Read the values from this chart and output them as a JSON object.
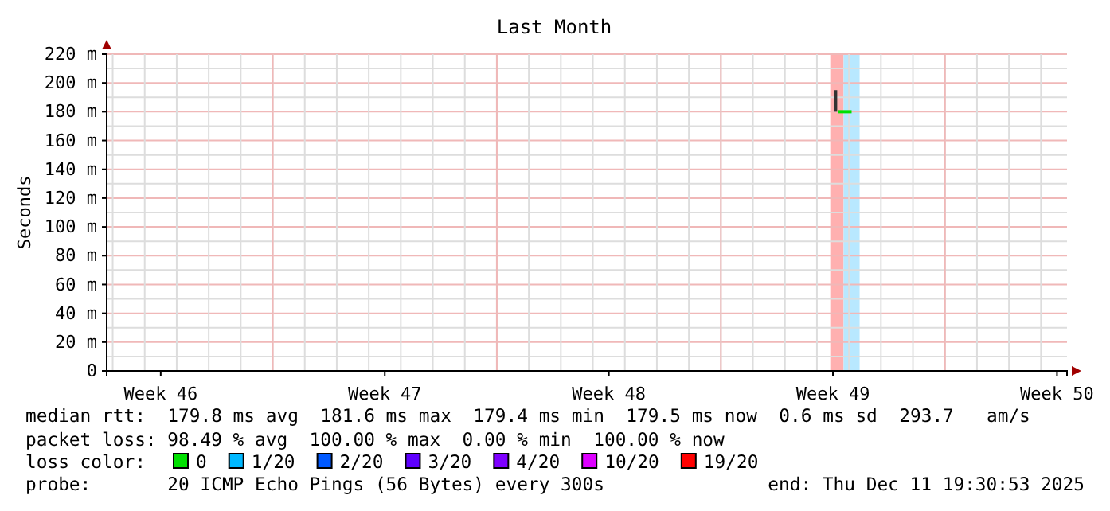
{
  "chart_data": {
    "type": "line",
    "title": "Last Month",
    "ylabel": "Seconds",
    "xlim": [
      "2025-11-11T19:30",
      "2025-12-11T19:30"
    ],
    "xticks": [
      {
        "value": "2025-11-13T12:00",
        "label": "Week 46"
      },
      {
        "value": "2025-11-20T12:00",
        "label": "Week 47"
      },
      {
        "value": "2025-11-27T12:00",
        "label": "Week 48"
      },
      {
        "value": "2025-12-04T12:00",
        "label": "Week 49"
      },
      {
        "value": "2025-12-11T12:00",
        "label": "Week 50"
      }
    ],
    "ylim": [
      0,
      220
    ],
    "yticks": [
      {
        "value": 0,
        "label": "0"
      },
      {
        "value": 20,
        "label": "20 m"
      },
      {
        "value": 40,
        "label": "40 m"
      },
      {
        "value": 60,
        "label": "60 m"
      },
      {
        "value": 80,
        "label": "80 m"
      },
      {
        "value": 100,
        "label": "100 m"
      },
      {
        "value": 120,
        "label": "120 m"
      },
      {
        "value": 140,
        "label": "140 m"
      },
      {
        "value": 160,
        "label": "160 m"
      },
      {
        "value": 180,
        "label": "180 m"
      },
      {
        "value": 200,
        "label": "200 m"
      },
      {
        "value": 220,
        "label": "220 m"
      }
    ],
    "grid": true,
    "bands": [
      {
        "axis": "x",
        "from": "2025-12-04T10:00",
        "to": "2025-12-04T20:00",
        "color": "#ffb0b0"
      },
      {
        "axis": "x",
        "from": "2025-12-04T20:00",
        "to": "2025-12-05T08:00",
        "color": "#b8e8ff"
      }
    ],
    "series": [
      {
        "color": "#333333",
        "x": [
          "2025-12-04T14:00",
          "2025-12-04T14:00"
        ],
        "values": [
          180,
          195
        ]
      },
      {
        "name": "0",
        "color": "#00e000",
        "x": [
          "2025-12-04T16:00",
          "2025-12-05T02:00"
        ],
        "values": [
          180,
          180
        ]
      },
      {
        "name": "1/20",
        "color": "#00b8ff"
      },
      {
        "name": "2/20",
        "color": "#0059ff"
      },
      {
        "name": "3/20",
        "color": "#5e00ff"
      },
      {
        "name": "4/20",
        "color": "#7e00ff"
      },
      {
        "name": "10/20",
        "color": "#dd00ff"
      },
      {
        "name": "19/20",
        "color": "#ff0000"
      }
    ],
    "legend": "bottom",
    "annotations": [
      "median rtt:  179.8 ms avg  181.6 ms max  179.4 ms min  179.5 ms now  0.6 ms sd  293.7   am/s",
      "packet loss: 98.49 % avg  100.00 % max  0.00 % min  100.00 % now",
      "loss color:",
      "probe:       20 ICMP Echo Pings (56 Bytes) every 300s",
      "end: Thu Dec 11 19:30:53 2025"
    ]
  }
}
